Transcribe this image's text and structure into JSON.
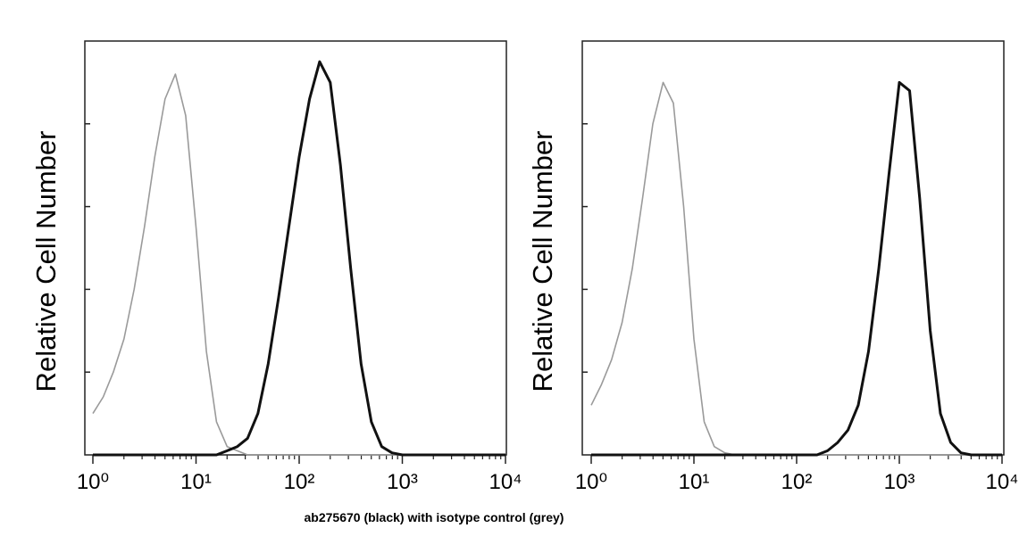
{
  "chart_data": [
    {
      "type": "line",
      "ylabel": "Relative Cell Number",
      "xscale": "log",
      "xlim": [
        1,
        10000
      ],
      "ylim": [
        0,
        100
      ],
      "xticks": [
        {
          "value": 1,
          "label": "10⁰"
        },
        {
          "value": 10,
          "label": "10¹"
        },
        {
          "value": 100,
          "label": "10²"
        },
        {
          "value": 1000,
          "label": "10³"
        },
        {
          "value": 10000,
          "label": "10⁴"
        }
      ],
      "x": [
        1,
        1.26,
        1.58,
        2,
        2.51,
        3.16,
        3.98,
        5.01,
        6.31,
        7.94,
        10,
        12.6,
        15.8,
        20,
        25.1,
        31.6,
        39.8,
        50.1,
        63.1,
        79.4,
        100,
        126,
        158,
        200,
        251,
        316,
        398,
        501,
        631,
        794,
        1000,
        1260,
        1580,
        2000,
        2510,
        3160,
        3980,
        5010,
        6310,
        7940,
        10000
      ],
      "series": [
        {
          "color": "#9a9a9a",
          "values": [
            10,
            14,
            20,
            28,
            40,
            55,
            72,
            86,
            92,
            82,
            55,
            25,
            8,
            2,
            1,
            0,
            0,
            0,
            0,
            0,
            0,
            0,
            0,
            0,
            0,
            0,
            0,
            0,
            0,
            0,
            0,
            0,
            0,
            0,
            0,
            0,
            0,
            0,
            0,
            0,
            0
          ]
        },
        {
          "color": "#111111",
          "values": [
            0,
            0,
            0,
            0,
            0,
            0,
            0,
            0,
            0,
            0,
            0,
            0,
            0,
            1,
            2,
            4,
            10,
            22,
            38,
            55,
            72,
            86,
            95,
            90,
            70,
            45,
            22,
            8,
            2,
            0.5,
            0,
            0,
            0,
            0,
            0,
            0,
            0,
            0,
            0,
            0,
            0
          ]
        }
      ]
    },
    {
      "type": "line",
      "ylabel": "Relative Cell Number",
      "xscale": "log",
      "xlim": [
        1,
        10000
      ],
      "ylim": [
        0,
        100
      ],
      "xticks": [
        {
          "value": 1,
          "label": "10⁰"
        },
        {
          "value": 10,
          "label": "10¹"
        },
        {
          "value": 100,
          "label": "10²"
        },
        {
          "value": 1000,
          "label": "10³"
        },
        {
          "value": 10000,
          "label": "10⁴"
        }
      ],
      "x": [
        1,
        1.26,
        1.58,
        2,
        2.51,
        3.16,
        3.98,
        5.01,
        6.31,
        7.94,
        10,
        12.6,
        15.8,
        20,
        25.1,
        31.6,
        39.8,
        50.1,
        63.1,
        79.4,
        100,
        126,
        158,
        200,
        251,
        316,
        398,
        501,
        631,
        794,
        1000,
        1260,
        1580,
        2000,
        2510,
        3160,
        3980,
        5010,
        6310,
        7940,
        10000
      ],
      "series": [
        {
          "color": "#9a9a9a",
          "values": [
            12,
            17,
            23,
            32,
            45,
            62,
            80,
            90,
            85,
            60,
            28,
            8,
            2,
            0.5,
            0,
            0,
            0,
            0,
            0,
            0,
            0,
            0,
            0,
            0,
            0,
            0,
            0,
            0,
            0,
            0,
            0,
            0,
            0,
            0,
            0,
            0,
            0,
            0,
            0,
            0,
            0
          ]
        },
        {
          "color": "#111111",
          "values": [
            0,
            0,
            0,
            0,
            0,
            0,
            0,
            0,
            0,
            0,
            0,
            0,
            0,
            0,
            0,
            0,
            0,
            0,
            0,
            0,
            0,
            0,
            0,
            1,
            3,
            6,
            12,
            25,
            45,
            68,
            90,
            88,
            62,
            30,
            10,
            3,
            0.5,
            0,
            0,
            0,
            0
          ]
        }
      ]
    }
  ],
  "caption": "ab275670 (black) with isotype control (grey)"
}
